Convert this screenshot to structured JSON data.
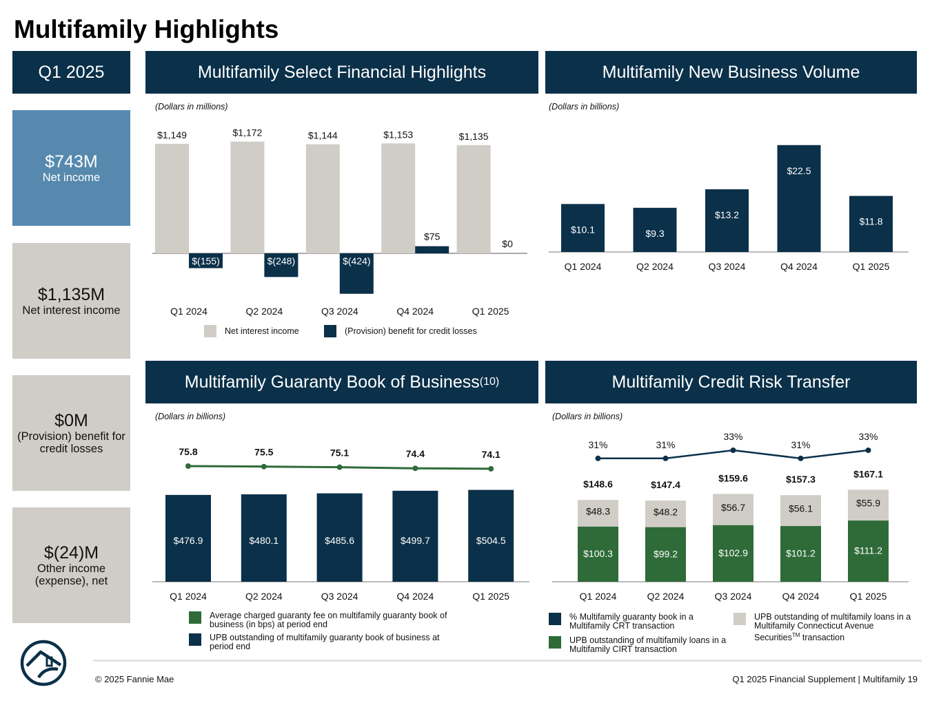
{
  "page": {
    "title": "Multifamily Highlights",
    "footer_left": "© 2025 Fannie Mae",
    "footer_right": "Q1 2025 Financial Supplement | Multifamily  19"
  },
  "kpi": {
    "header": "Q1 2025",
    "items": [
      {
        "value": "$743M",
        "label": "Net income"
      },
      {
        "value": "$1,135M",
        "label": "Net interest income"
      },
      {
        "value": "$0M",
        "label": "(Provision) benefit for credit losses"
      },
      {
        "value": "$(24)M",
        "label": "Other income (expense), net"
      }
    ]
  },
  "panels": {
    "financial": {
      "title": "Multifamily Select Financial Highlights",
      "unit": "(Dollars in millions)"
    },
    "volume": {
      "title": "Multifamily New Business Volume",
      "unit": "(Dollars in billions)"
    },
    "guaranty": {
      "title": "Multifamily Guaranty Book of Business",
      "title_sup": "(10)",
      "unit": "(Dollars in billions)"
    },
    "crt": {
      "title": "Multifamily Credit Risk Transfer",
      "unit": "(Dollars in billions)"
    }
  },
  "colors": {
    "navy": "#0b3049",
    "gray": "#d0cdc7",
    "green": "#2e6b38",
    "steel": "#5689ad"
  },
  "chart_data": [
    {
      "id": "financial",
      "type": "bar",
      "title": "Multifamily Select Financial Highlights",
      "categories": [
        "Q1 2024",
        "Q2 2024",
        "Q3 2024",
        "Q4 2024",
        "Q1 2025"
      ],
      "series": [
        {
          "name": "Net interest income",
          "values": [
            1149,
            1172,
            1144,
            1153,
            1135
          ],
          "labels": [
            "$1,149",
            "$1,172",
            "$1,144",
            "$1,153",
            "$1,135"
          ]
        },
        {
          "name": "(Provision) benefit for credit losses",
          "values": [
            -155,
            -248,
            -424,
            75,
            0
          ],
          "labels": [
            "$(155)",
            "$(248)",
            "$(424)",
            "$75",
            "$0"
          ]
        }
      ]
    },
    {
      "id": "volume",
      "type": "bar",
      "title": "Multifamily New Business Volume",
      "categories": [
        "Q1 2024",
        "Q2 2024",
        "Q3 2024",
        "Q4 2024",
        "Q1 2025"
      ],
      "values": [
        10.1,
        9.3,
        13.2,
        22.5,
        11.8
      ],
      "labels": [
        "$10.1",
        "$9.3",
        "$13.2",
        "$22.5",
        "$11.8"
      ]
    },
    {
      "id": "guaranty",
      "type": "bar",
      "title": "Multifamily Guaranty Book of Business",
      "categories": [
        "Q1 2024",
        "Q2 2024",
        "Q3 2024",
        "Q4 2024",
        "Q1 2025"
      ],
      "series": [
        {
          "name": "UPB outstanding of multifamily guaranty book of business at period end",
          "values": [
            476.9,
            480.1,
            485.6,
            499.7,
            504.5
          ],
          "labels": [
            "$476.9",
            "$480.1",
            "$485.6",
            "$499.7",
            "$504.5"
          ]
        },
        {
          "name": "Average charged guaranty fee on multifamily guaranty book of business (in bps) at period end",
          "type": "line",
          "values": [
            75.8,
            75.5,
            75.1,
            74.4,
            74.1
          ],
          "labels": [
            "75.8",
            "75.5",
            "75.1",
            "74.4",
            "74.1"
          ]
        }
      ],
      "legend": [
        "Average charged guaranty fee on multifamily guaranty book of business (in bps) at period end",
        "UPB outstanding of multifamily guaranty book of business at period end"
      ]
    },
    {
      "id": "crt",
      "type": "bar",
      "stacked": true,
      "title": "Multifamily Credit Risk Transfer",
      "categories": [
        "Q1 2024",
        "Q2 2024",
        "Q3 2024",
        "Q4 2024",
        "Q1 2025"
      ],
      "series": [
        {
          "name": "UPB outstanding of multifamily loans in a Multifamily CIRT transaction",
          "values": [
            100.3,
            99.2,
            102.9,
            101.2,
            111.2
          ],
          "labels": [
            "$100.3",
            "$99.2",
            "$102.9",
            "$101.2",
            "$111.2"
          ]
        },
        {
          "name": "UPB outstanding of multifamily loans in a Multifamily Connecticut Avenue Securities transaction",
          "values": [
            48.3,
            48.2,
            56.7,
            56.1,
            55.9
          ],
          "labels": [
            "$48.3",
            "$48.2",
            "$56.7",
            "$56.1",
            "$55.9"
          ]
        },
        {
          "name": "% Multifamily guaranty book in a Multifamily CRT transaction",
          "type": "line",
          "values": [
            31,
            31,
            33,
            31,
            33
          ],
          "labels": [
            "31%",
            "31%",
            "33%",
            "31%",
            "33%"
          ]
        }
      ],
      "totals": [
        148.6,
        147.4,
        159.6,
        157.3,
        167.1
      ],
      "total_labels": [
        "$148.6",
        "$147.4",
        "$159.6",
        "$157.3",
        "$167.1"
      ],
      "legend": {
        "pct": "% Multifamily guaranty book in a Multifamily CRT transaction",
        "cirt": "UPB outstanding of multifamily loans in a Multifamily CIRT transaction",
        "cas_prefix": "UPB outstanding of multifamily loans in a Multifamily Connecticut Avenue Securities",
        "cas_sup": "TM",
        "cas_suffix": " transaction"
      }
    }
  ]
}
